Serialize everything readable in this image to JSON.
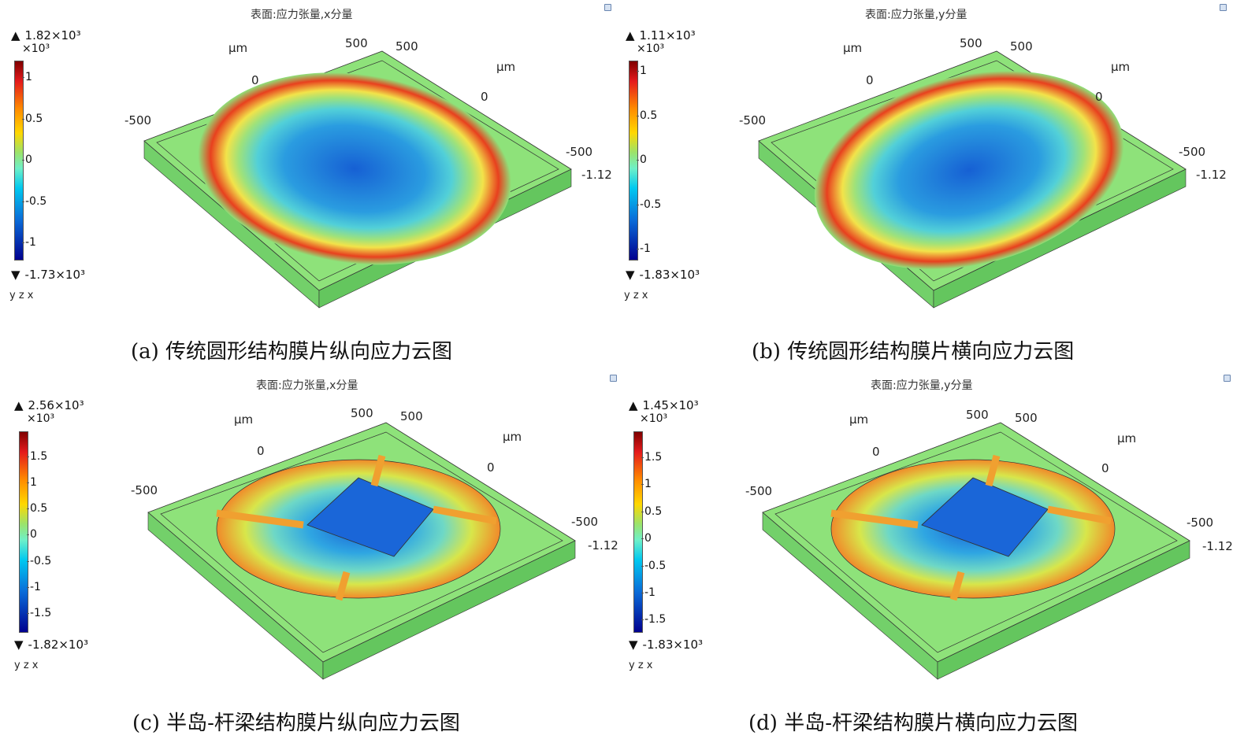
{
  "panels": [
    {
      "id": "a",
      "title": "表面:应力张量,x分量",
      "max_label": "1.82×10³",
      "min_label": "-1.73×10³",
      "unit": "×10³",
      "ticks": [
        "1",
        "0.5",
        "0",
        "-0.5",
        "-1"
      ],
      "axis_labels": {
        "mu_left": "μm",
        "mu_right": "μm",
        "t500a": "500",
        "t500b": "500",
        "t0a": "0",
        "t0b": "0",
        "tm500a": "-500",
        "tm500b": "-500",
        "thick": "-1.12"
      },
      "triad": "y z x",
      "caption": "(a) 传统圆形结构膜片纵向应力云图"
    },
    {
      "id": "b",
      "title": "表面:应力张量,y分量",
      "max_label": "1.11×10³",
      "min_label": "-1.83×10³",
      "unit": "×10³",
      "ticks": [
        "1",
        "0.5",
        "0",
        "-0.5",
        "-1"
      ],
      "axis_labels": {
        "mu_left": "μm",
        "mu_right": "μm",
        "t500a": "500",
        "t500b": "500",
        "t0a": "0",
        "t0b": "0",
        "tm500a": "-500",
        "tm500b": "-500",
        "thick": "-1.12"
      },
      "triad": "y z x",
      "caption": "(b) 传统圆形结构膜片横向应力云图"
    },
    {
      "id": "c",
      "title": "表面:应力张量,x分量",
      "max_label": "2.56×10³",
      "min_label": "-1.82×10³",
      "unit": "×10³",
      "ticks": [
        "1.5",
        "1",
        "0.5",
        "0",
        "-0.5",
        "-1",
        "-1.5"
      ],
      "axis_labels": {
        "mu_left": "μm",
        "mu_right": "μm",
        "t500a": "500",
        "t500b": "500",
        "t0a": "0",
        "t0b": "0",
        "tm500a": "-500",
        "tm500b": "-500",
        "thick": "-1.12"
      },
      "triad": "y z x",
      "caption": "(c) 半岛-杆梁结构膜片纵向应力云图"
    },
    {
      "id": "d",
      "title": "表面:应力张量,y分量",
      "max_label": "1.45×10³",
      "min_label": "-1.83×10³",
      "unit": "×10³",
      "ticks": [
        "1.5",
        "1",
        "0.5",
        "0",
        "-0.5",
        "-1",
        "-1.5"
      ],
      "axis_labels": {
        "mu_left": "μm",
        "mu_right": "μm",
        "t500a": "500",
        "t500b": "500",
        "t0a": "0",
        "t0b": "0",
        "tm500a": "-500",
        "tm500b": "-500",
        "thick": "-1.12"
      },
      "triad": "y z x",
      "caption": "(d) 半岛-杆梁结构膜片横向应力云图"
    }
  ],
  "colors": {
    "plate": "#8ee27a",
    "plate_side": "#6fcf6a",
    "red": "#e0301e",
    "yellow": "#f2e34a",
    "blue": "#1764d0",
    "cyan": "#3fc9e6"
  }
}
